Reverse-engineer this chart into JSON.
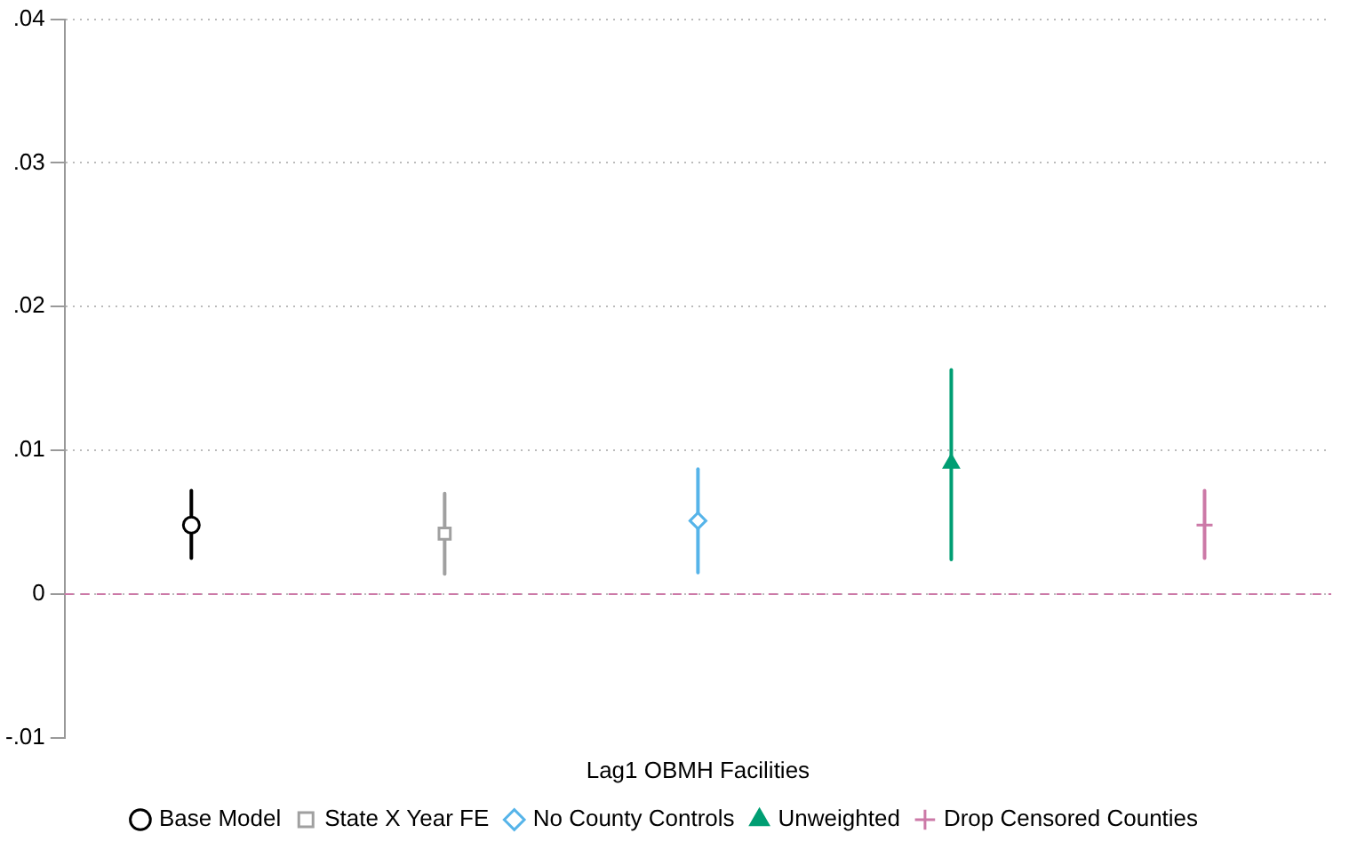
{
  "chart_data": {
    "type": "scatter",
    "categories": [
      null,
      null,
      "Lag1 OBMH Facilities",
      null,
      null
    ],
    "series": [
      {
        "name": "Base Model",
        "color": "#000000",
        "marker": "circle",
        "values": [
          0.0048,
          null,
          null,
          null,
          null
        ],
        "errors": [
          [
            0.0025,
            0.0072
          ],
          null,
          null,
          null,
          null
        ]
      },
      {
        "name": "State X Year FE",
        "color": "#a0a0a0",
        "marker": "square",
        "values": [
          null,
          0.0042,
          null,
          null,
          null
        ],
        "errors": [
          null,
          [
            0.0014,
            0.007
          ],
          null,
          null,
          null
        ]
      },
      {
        "name": "No County Controls",
        "color": "#56b4e9",
        "marker": "diamond",
        "values": [
          null,
          null,
          0.0051,
          null,
          null
        ],
        "errors": [
          null,
          null,
          [
            0.0015,
            0.0087
          ],
          null,
          null
        ]
      },
      {
        "name": "Unweighted",
        "color": "#009e73",
        "marker": "triangle",
        "values": [
          null,
          null,
          null,
          0.0091,
          null
        ],
        "errors": [
          null,
          null,
          null,
          [
            0.0024,
            0.0156
          ],
          null
        ]
      },
      {
        "name": "Drop Censored Counties",
        "color": "#cc79a7",
        "marker": "cross",
        "values": [
          null,
          null,
          null,
          null,
          0.0048
        ],
        "errors": [
          null,
          null,
          null,
          null,
          [
            0.0025,
            0.0072
          ]
        ]
      }
    ],
    "ylim": [
      -0.01,
      0.04
    ],
    "yticks": [
      {
        "value": -0.01,
        "label": "-.01"
      },
      {
        "value": 0,
        "label": "0"
      },
      {
        "value": 0.01,
        "label": ".01"
      },
      {
        "value": 0.02,
        "label": ".02"
      },
      {
        "value": 0.03,
        "label": ".03"
      },
      {
        "value": 0.04,
        "label": ".04"
      }
    ],
    "grid": "y",
    "legend": "bottom",
    "ref_lines": [
      {
        "axis": "y",
        "value": 0,
        "color": "#cc79a7",
        "line_style": "dashed"
      }
    ]
  }
}
